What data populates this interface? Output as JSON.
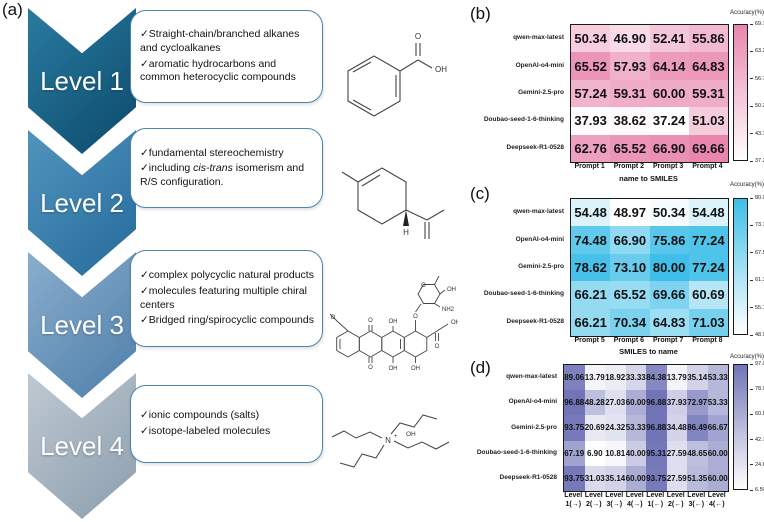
{
  "panel_a": {
    "label": "(a)",
    "levels": [
      {
        "name": "Level 1",
        "color_light": "#2a7ba0",
        "color_dark": "#0b4a6b",
        "bullets": [
          "✓Straight-chain/branched alkanes and cycloalkanes",
          "✓aromatic hydrocarbons and common heterocyclic compounds"
        ],
        "molecule": "benzoic acid"
      },
      {
        "name": "Level 2",
        "color_light": "#5094bd",
        "color_dark": "#266a9c",
        "bullets": [
          "✓fundamental stereochemistry"
        ],
        "bullet_rich": {
          "pre": "✓including ",
          "italic": "cis-trans",
          "post": " isomerism and R/S configuration."
        },
        "molecule": "limonene"
      },
      {
        "name": "Level 3",
        "color_light": "#8aaecd",
        "color_dark": "#4e7ea9",
        "bullets": [
          "✓complex polycyclic natural products",
          "✓molecules featuring multiple chiral centers",
          "✓Bridged ring/spirocyclic compounds"
        ],
        "molecule": "doxorubicin-like polycyclic natural product"
      },
      {
        "name": "Level 4",
        "color_light": "#bfc9d2",
        "color_dark": "#8a9dad",
        "bullets": [
          "✓ionic compounds (salts)",
          "✓isotope-labeled molecules"
        ],
        "molecule": "tetrabutylammonium hydroxide"
      }
    ],
    "atom_labels": {
      "benzoic": {
        "o": "O",
        "oh": "OH"
      },
      "limonene": {
        "h": "H"
      },
      "doxorubicin": {
        "o_methoxy": "O",
        "o_quinone_top": "O",
        "o_quinone_bottom": "O",
        "oh_top": "OH",
        "oh_bottom": "OH",
        "oh_ring": "OH",
        "o_glyco": "O",
        "o_side": "O",
        "oh_side": "OH",
        "o_sugar": "O",
        "oh_sugar": "OH",
        "nh2_sugar": "NH2"
      },
      "tbah": {
        "n": "N",
        "charge": "+",
        "oh": "OH"
      }
    }
  },
  "chart_data": [
    {
      "type": "heatmap",
      "panel_label": "(b)",
      "rows": [
        "qwen-max-latest",
        "OpenAI-o4-mini",
        "Gemini-2.5-pro",
        "Doubao-seed-1-6-thinking",
        "Deepseek-R1-0528"
      ],
      "columns": [
        "Prompt 1",
        "Prompt 2",
        "Prompt 3",
        "Prompt 4"
      ],
      "values": [
        [
          "50.34",
          "46.90",
          "52.41",
          "55.86"
        ],
        [
          "65.52",
          "57.93",
          "64.14",
          "64.83"
        ],
        [
          "57.24",
          "59.31",
          "60.00",
          "59.31"
        ],
        [
          "37.93",
          "38.62",
          "37.24",
          "51.03"
        ],
        [
          "62.76",
          "65.52",
          "66.90",
          "69.66"
        ]
      ],
      "xlabel": "name to SMILES",
      "two_line_columns": false,
      "colorbar": {
        "title": "Accuracy(%)",
        "ticks": [
          "69.70",
          "63.20",
          "56.70",
          "50.20",
          "43.70",
          "37.20"
        ],
        "vmin": 37.2,
        "vmax": 69.7,
        "accent": "#e886ad"
      }
    },
    {
      "type": "heatmap",
      "panel_label": "(c)",
      "rows": [
        "qwen-max-latest",
        "OpenAI-o4-mini",
        "Gemini-2.5-pro",
        "Doubao-seed-1-6-thinking",
        "Deepseek-R1-0528"
      ],
      "columns": [
        "Prompt 5",
        "Prompt 6",
        "Prompt 7",
        "Prompt 8"
      ],
      "values": [
        [
          "54.48",
          "48.97",
          "50.34",
          "54.48"
        ],
        [
          "74.48",
          "66.90",
          "75.86",
          "77.24"
        ],
        [
          "78.62",
          "73.10",
          "80.00",
          "77.24"
        ],
        [
          "66.21",
          "65.52",
          "69.66",
          "60.69"
        ],
        [
          "66.21",
          "70.34",
          "64.83",
          "71.03"
        ]
      ],
      "xlabel": "SMILES to name",
      "two_line_columns": false,
      "colorbar": {
        "title": "Accuracy(%)",
        "ticks": [
          "80.00",
          "73.78",
          "67.56",
          "61.34",
          "55.12",
          "48.90"
        ],
        "vmin": 48.9,
        "vmax": 80.0,
        "accent": "#3ebee8"
      }
    },
    {
      "type": "heatmap",
      "panel_label": "(d)",
      "rows": [
        "qwen-max-latest",
        "OpenAI-o4-mini",
        "Gemini-2.5-pro",
        "Doubao-seed-1-6-thinking",
        "Deepseek-R1-0528"
      ],
      "columns": [
        "Level 1(→)",
        "Level 2(→)",
        "Level 3(→)",
        "Level 4(→)",
        "Level 1(←)",
        "Level 2(←)",
        "Level 3(←)",
        "Level 4(←)"
      ],
      "values": [
        [
          "89.06",
          "13.79",
          "18.92",
          "33.33",
          "84.38",
          "13.79",
          "35.14",
          "53.33"
        ],
        [
          "96.88",
          "48.28",
          "27.03",
          "60.00",
          "96.88",
          "37.93",
          "72.97",
          "53.33"
        ],
        [
          "93.75",
          "20.69",
          "24.32",
          "53.33",
          "96.88",
          "34.48",
          "86.49",
          "66.67"
        ],
        [
          "67.19",
          "6.90",
          "10.81",
          "40.00",
          "95.31",
          "27.59",
          "48.65",
          "60.00"
        ],
        [
          "93.75",
          "31.03",
          "35.14",
          "60.00",
          "93.75",
          "27.59",
          "51.35",
          "60.00"
        ]
      ],
      "xlabel": "",
      "two_line_columns": true,
      "colorbar": {
        "title": "Accuracy(%)",
        "ticks": [
          "97.00",
          "78.90",
          "60.80",
          "42.70",
          "24.60",
          "6.500"
        ],
        "vmin": 6.5,
        "vmax": 97.0,
        "accent": "#7175b8"
      }
    }
  ]
}
